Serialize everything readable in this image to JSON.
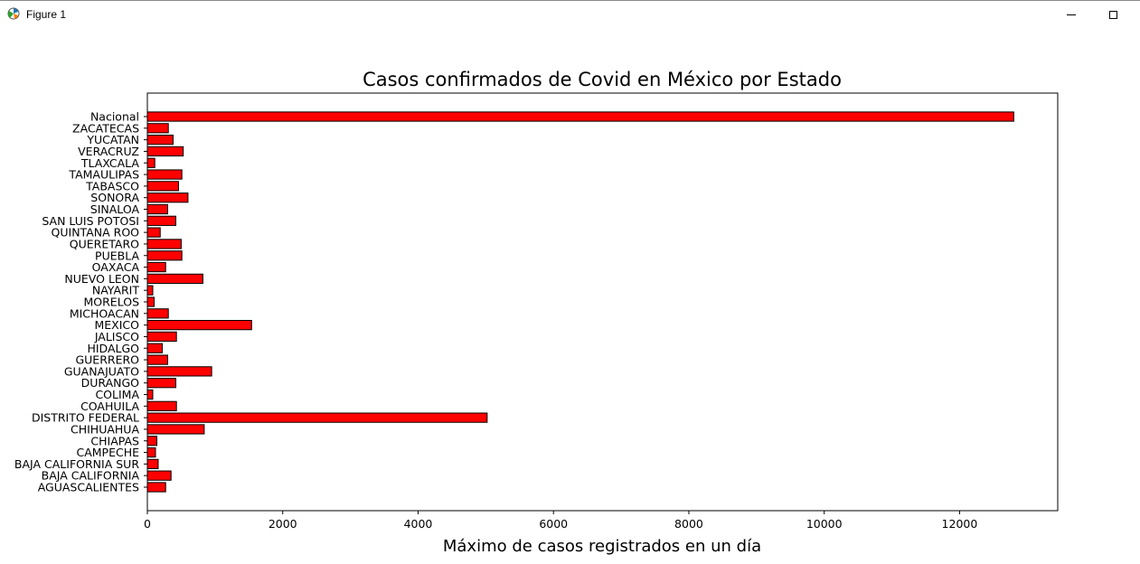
{
  "window": {
    "title": "Figure 1",
    "icon": "matplotlib-icon",
    "controls": [
      "minimize-icon",
      "maximize-icon"
    ]
  },
  "chart_data": {
    "type": "bar",
    "orientation": "horizontal",
    "title": "Casos confirmados de Covid en México por Estado",
    "xlabel": "Máximo de casos registrados en un día",
    "ylabel": "",
    "xlim": [
      0,
      13450
    ],
    "xticks": [
      0,
      2000,
      4000,
      6000,
      8000,
      10000,
      12000
    ],
    "bar_color": "#ff0000",
    "edge_color": "#000000",
    "grid": false,
    "categories": [
      "AGUASCALIENTES",
      "BAJA CALIFORNIA",
      "BAJA CALIFORNIA SUR",
      "CAMPECHE",
      "CHIAPAS",
      "CHIHUAHUA",
      "DISTRITO FEDERAL",
      "COAHUILA",
      "COLIMA",
      "DURANGO",
      "GUANAJUATO",
      "GUERRERO",
      "HIDALGO",
      "JALISCO",
      "MEXICO",
      "MICHOACAN",
      "MORELOS",
      "NAYARIT",
      "NUEVO LEON",
      "OAXACA",
      "PUEBLA",
      "QUERETARO",
      "QUINTANA ROO",
      "SAN LUIS POTOSI",
      "SINALOA",
      "SONORA",
      "TABASCO",
      "TAMAULIPAS",
      "TLAXCALA",
      "VERACRUZ",
      "YUCATAN",
      "ZACATECAS",
      "Nacional"
    ],
    "values": [
      270,
      350,
      160,
      120,
      140,
      840,
      5020,
      430,
      80,
      420,
      950,
      300,
      220,
      430,
      1540,
      310,
      100,
      80,
      820,
      270,
      510,
      500,
      190,
      420,
      300,
      600,
      460,
      510,
      110,
      530,
      380,
      310,
      12800
    ]
  }
}
